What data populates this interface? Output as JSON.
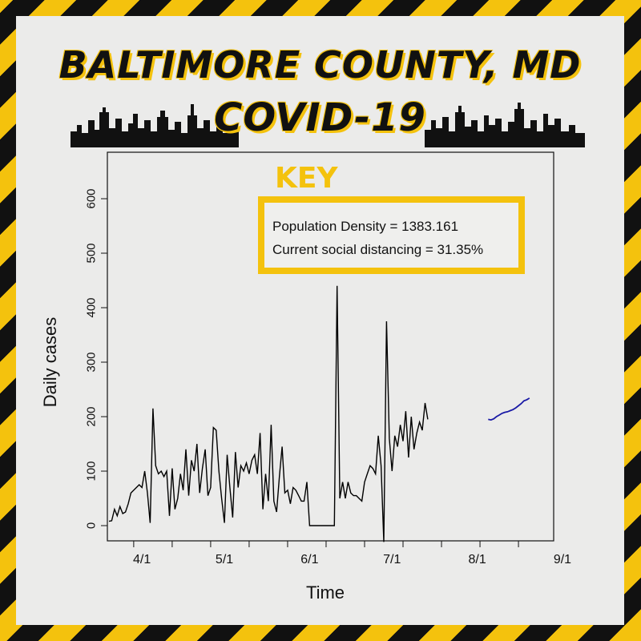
{
  "header": {
    "title_line1": "BALTIMORE COUNTY, MD",
    "title_line2": "COVID-19"
  },
  "key": {
    "title": "KEY",
    "line1": "Population Density =  1383.161",
    "line2": "Current social distancing = 31.35%"
  },
  "colors": {
    "stripe_yellow": "#f4c20d",
    "stripe_black": "#111111",
    "observed_line": "#000000",
    "forecast_line": "#1a1aa6"
  },
  "chart_data": {
    "type": "line",
    "xlabel": "Time",
    "ylabel": "Daily cases",
    "x_tick_labels": [
      "4/1",
      "5/1",
      "6/1",
      "7/1",
      "8/1",
      "9/1"
    ],
    "y_tick_labels": [
      "0",
      "100",
      "200",
      "300",
      "400",
      "500",
      "600"
    ],
    "ylim": [
      -25,
      700
    ],
    "grid": false,
    "series": [
      {
        "role": "observed",
        "start_date": "2020-03-20",
        "values": [
          8,
          9,
          30,
          18,
          35,
          22,
          25,
          40,
          60,
          65,
          70,
          75,
          70,
          100,
          60,
          5,
          215,
          110,
          95,
          100,
          90,
          100,
          18,
          105,
          30,
          50,
          95,
          65,
          140,
          55,
          120,
          100,
          150,
          60,
          105,
          140,
          55,
          70,
          180,
          175,
          100,
          50,
          5,
          130,
          70,
          15,
          135,
          70,
          110,
          100,
          115,
          95,
          120,
          130,
          95,
          170,
          30,
          95,
          45,
          185,
          45,
          25,
          90,
          145,
          60,
          65,
          40,
          70,
          65,
          55,
          45,
          45,
          80,
          0,
          0,
          0,
          0,
          0,
          0,
          0,
          0,
          0,
          0,
          440,
          50,
          80,
          50,
          80,
          60,
          55,
          55,
          50,
          45,
          80,
          95,
          110,
          105,
          95,
          165,
          110,
          -30,
          375,
          160,
          100,
          165,
          145,
          185,
          155,
          210,
          125,
          200,
          140,
          170,
          190,
          175,
          225,
          195
        ]
      },
      {
        "role": "forecast",
        "start_date": "2020-08-05",
        "values": [
          195,
          194,
          196,
          200,
          203,
          206,
          208,
          209,
          211,
          213,
          216,
          220,
          224,
          229,
          231,
          234
        ]
      }
    ]
  }
}
